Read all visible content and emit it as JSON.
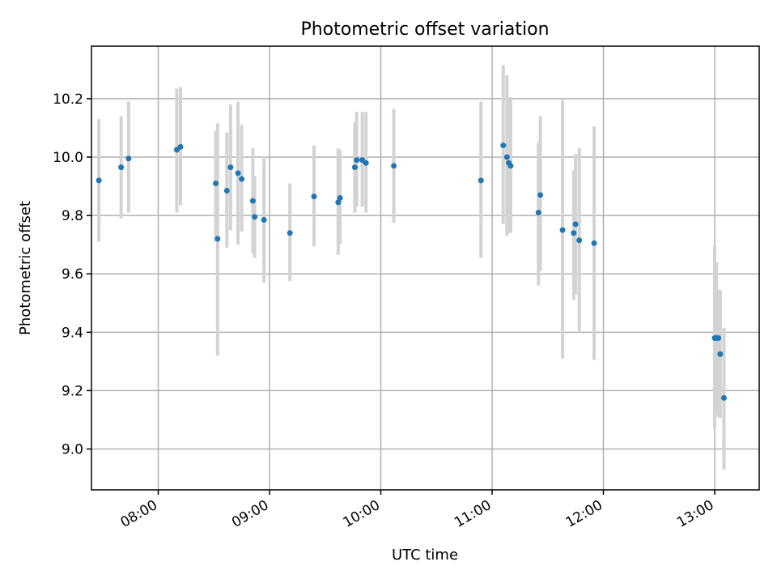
{
  "chart_data": {
    "type": "scatter",
    "title": "Photometric offset variation",
    "xlabel": "UTC time",
    "ylabel": "Photometric offset",
    "xlim": [
      "07:24",
      "13:24"
    ],
    "ylim": [
      8.86,
      10.38
    ],
    "xticks": [
      "08:00",
      "09:00",
      "10:00",
      "11:00",
      "12:00",
      "13:00"
    ],
    "yticks": [
      "9.0",
      "9.2",
      "9.4",
      "9.6",
      "9.8",
      "10.0",
      "10.2"
    ],
    "grid": true,
    "colors": {
      "points": "#1f77b4",
      "error_bars": "#d3d3d3",
      "grid": "#b0b0b0"
    },
    "points": [
      {
        "x": "07:28",
        "y": 9.92,
        "yerr_low": 9.71,
        "yerr_high": 10.13
      },
      {
        "x": "07:40",
        "y": 9.965,
        "yerr_low": 9.79,
        "yerr_high": 10.14
      },
      {
        "x": "07:44",
        "y": 9.995,
        "yerr_low": 9.81,
        "yerr_high": 10.19
      },
      {
        "x": "08:10",
        "y": 10.025,
        "yerr_low": 9.81,
        "yerr_high": 10.235
      },
      {
        "x": "08:12",
        "y": 10.035,
        "yerr_low": 9.835,
        "yerr_high": 10.24
      },
      {
        "x": "08:31",
        "y": 9.91,
        "yerr_low": 9.71,
        "yerr_high": 10.09
      },
      {
        "x": "08:32",
        "y": 9.72,
        "yerr_low": 9.32,
        "yerr_high": 10.115
      },
      {
        "x": "08:37",
        "y": 9.885,
        "yerr_low": 9.69,
        "yerr_high": 10.085
      },
      {
        "x": "08:39",
        "y": 9.965,
        "yerr_low": 9.75,
        "yerr_high": 10.18
      },
      {
        "x": "08:43",
        "y": 9.945,
        "yerr_low": 9.7,
        "yerr_high": 10.19
      },
      {
        "x": "08:45",
        "y": 9.925,
        "yerr_low": 9.745,
        "yerr_high": 10.11
      },
      {
        "x": "08:51",
        "y": 9.85,
        "yerr_low": 9.67,
        "yerr_high": 10.03
      },
      {
        "x": "08:52",
        "y": 9.795,
        "yerr_low": 9.655,
        "yerr_high": 9.935
      },
      {
        "x": "08:57",
        "y": 9.785,
        "yerr_low": 9.57,
        "yerr_high": 10.0
      },
      {
        "x": "09:11",
        "y": 9.74,
        "yerr_low": 9.575,
        "yerr_high": 9.91
      },
      {
        "x": "09:24",
        "y": 9.865,
        "yerr_low": 9.695,
        "yerr_high": 10.04
      },
      {
        "x": "09:37",
        "y": 9.845,
        "yerr_low": 9.665,
        "yerr_high": 10.03
      },
      {
        "x": "09:38",
        "y": 9.86,
        "yerr_low": 9.7,
        "yerr_high": 10.025
      },
      {
        "x": "09:46",
        "y": 9.965,
        "yerr_low": 9.81,
        "yerr_high": 10.12
      },
      {
        "x": "09:47",
        "y": 9.99,
        "yerr_low": 9.83,
        "yerr_high": 10.155
      },
      {
        "x": "09:50",
        "y": 9.99,
        "yerr_low": 9.83,
        "yerr_high": 10.155
      },
      {
        "x": "09:52",
        "y": 9.98,
        "yerr_low": 9.81,
        "yerr_high": 10.155
      },
      {
        "x": "10:07",
        "y": 9.97,
        "yerr_low": 9.775,
        "yerr_high": 10.165
      },
      {
        "x": "10:54",
        "y": 9.92,
        "yerr_low": 9.655,
        "yerr_high": 10.19
      },
      {
        "x": "11:06",
        "y": 10.04,
        "yerr_low": 9.77,
        "yerr_high": 10.315
      },
      {
        "x": "11:08",
        "y": 10.0,
        "yerr_low": 9.73,
        "yerr_high": 10.28
      },
      {
        "x": "11:09",
        "y": 9.98,
        "yerr_low": 9.74,
        "yerr_high": 10.2
      },
      {
        "x": "11:10",
        "y": 9.97,
        "yerr_low": 9.74,
        "yerr_high": 10.205
      },
      {
        "x": "11:25",
        "y": 9.81,
        "yerr_low": 9.56,
        "yerr_high": 10.05
      },
      {
        "x": "11:26",
        "y": 9.87,
        "yerr_low": 9.61,
        "yerr_high": 10.14
      },
      {
        "x": "11:38",
        "y": 9.75,
        "yerr_low": 9.31,
        "yerr_high": 10.195
      },
      {
        "x": "11:44",
        "y": 9.74,
        "yerr_low": 9.51,
        "yerr_high": 9.955
      },
      {
        "x": "11:45",
        "y": 9.77,
        "yerr_low": 9.53,
        "yerr_high": 10.01
      },
      {
        "x": "11:47",
        "y": 9.715,
        "yerr_low": 9.4,
        "yerr_high": 10.03
      },
      {
        "x": "11:55",
        "y": 9.705,
        "yerr_low": 9.305,
        "yerr_high": 10.105
      },
      {
        "x": "13:00",
        "y": 9.38,
        "yerr_low": 9.07,
        "yerr_high": 9.695
      },
      {
        "x": "13:01",
        "y": 9.38,
        "yerr_low": 9.12,
        "yerr_high": 9.64
      },
      {
        "x": "13:02",
        "y": 9.38,
        "yerr_low": 9.11,
        "yerr_high": 9.545
      },
      {
        "x": "13:03",
        "y": 9.325,
        "yerr_low": 9.105,
        "yerr_high": 9.545
      },
      {
        "x": "13:05",
        "y": 9.175,
        "yerr_low": 8.93,
        "yerr_high": 9.415
      }
    ]
  }
}
